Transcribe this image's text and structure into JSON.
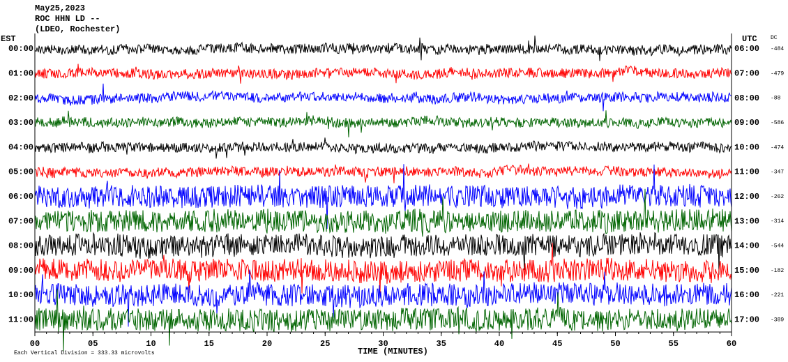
{
  "header": {
    "lines": [
      "May25,2023",
      "ROC HHN LD --",
      "(LDEO, Rochester)"
    ]
  },
  "left_label": "EST",
  "right_label": "UTC",
  "dc_label": "DC",
  "rows": [
    {
      "est": "00:00",
      "utc": "06:00",
      "dc": -484,
      "color": "#000000"
    },
    {
      "est": "01:00",
      "utc": "07:00",
      "dc": -479,
      "color": "#ff0000"
    },
    {
      "est": "02:00",
      "utc": "08:00",
      "dc": -88,
      "color": "#0000ff"
    },
    {
      "est": "03:00",
      "utc": "09:00",
      "dc": -586,
      "color": "#006400"
    },
    {
      "est": "04:00",
      "utc": "10:00",
      "dc": -474,
      "color": "#000000"
    },
    {
      "est": "05:00",
      "utc": "11:00",
      "dc": -347,
      "color": "#ff0000"
    },
    {
      "est": "06:00",
      "utc": "12:00",
      "dc": -262,
      "color": "#0000ff"
    },
    {
      "est": "07:00",
      "utc": "13:00",
      "dc": -314,
      "color": "#006400"
    },
    {
      "est": "08:00",
      "utc": "14:00",
      "dc": -544,
      "color": "#000000"
    },
    {
      "est": "09:00",
      "utc": "15:00",
      "dc": -182,
      "color": "#ff0000"
    },
    {
      "est": "10:00",
      "utc": "16:00",
      "dc": -221,
      "color": "#0000ff"
    },
    {
      "est": "11:00",
      "utc": "17:00",
      "dc": -389,
      "color": "#006400"
    }
  ],
  "x_axis": {
    "ticks": [
      "00",
      "05",
      "10",
      "15",
      "20",
      "25",
      "30",
      "35",
      "40",
      "45",
      "50",
      "55",
      "60"
    ],
    "label": "TIME (MINUTES)"
  },
  "footer": "Each Vertical Division =  333.33 microvolts"
}
